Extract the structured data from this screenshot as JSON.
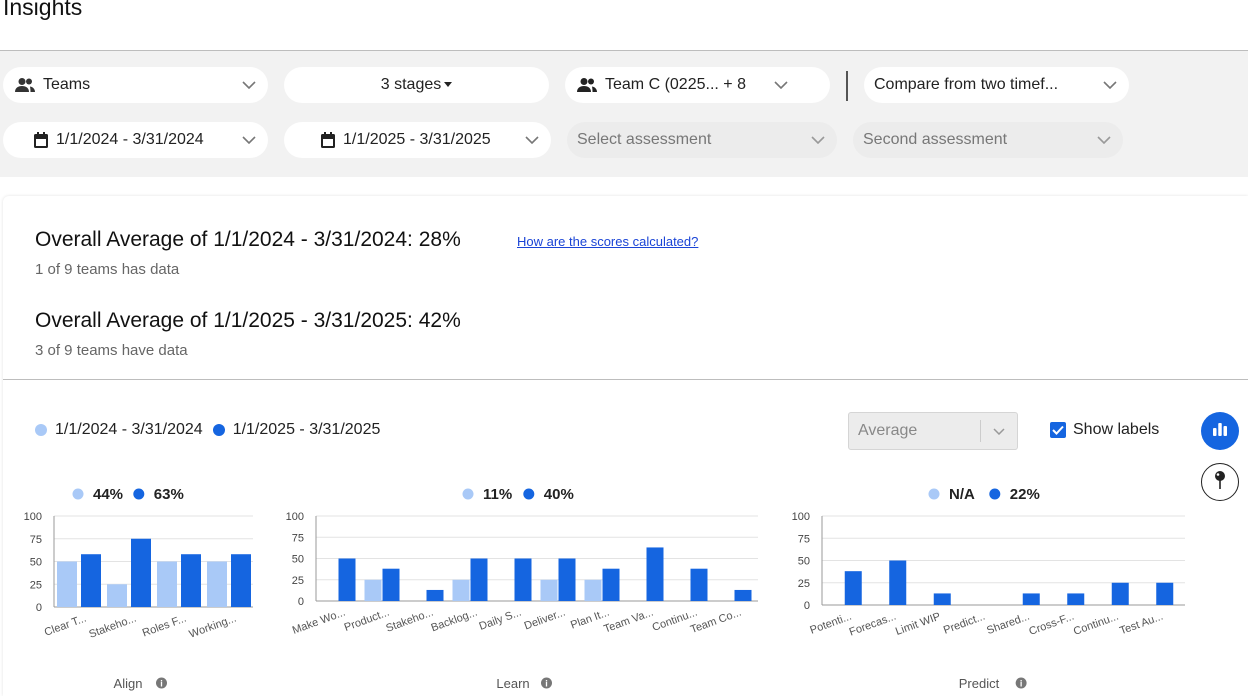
{
  "page_title": "Insights",
  "filters": {
    "group_by": "Teams",
    "stages": "3 stages",
    "teams": "Team C (0225... + 8",
    "compare_mode": "Compare from two timef...",
    "date_range_1": "1/1/2024 - 3/31/2024",
    "date_range_2": "1/1/2025 - 3/31/2025",
    "assessment_1_placeholder": "Select assessment",
    "assessment_2_placeholder": "Second assessment"
  },
  "summary": {
    "avg_1": "Overall Average of 1/1/2024 - 3/31/2024: 28%",
    "how_link": "How are the scores calculated?",
    "teams_1": "1 of 9 teams has data",
    "avg_2": "Overall Average of 1/1/2025 - 3/31/2025: 42%",
    "teams_2": "3 of 9 teams have data"
  },
  "legend": {
    "series_1": "1/1/2024 - 3/31/2024",
    "series_2": "1/1/2025 - 3/31/2025"
  },
  "controls": {
    "aggregation": "Average",
    "show_labels": "Show labels",
    "show_labels_checked": true
  },
  "colors": {
    "series_1": "#a9c9f7",
    "series_2": "#1565e0",
    "accent": "#1565e0"
  },
  "chart_data": [
    {
      "type": "bar",
      "group": "Align",
      "summary_1": "44%",
      "summary_2": "63%",
      "categories": [
        "Clear T...",
        "Stakeho...",
        "Roles F...",
        "Working..."
      ],
      "series": [
        {
          "name": "1/1/2024 - 3/31/2024",
          "values": [
            50,
            25,
            50,
            50
          ]
        },
        {
          "name": "1/1/2025 - 3/31/2025",
          "values": [
            58,
            75,
            58,
            58
          ]
        }
      ],
      "ylim": [
        0,
        100
      ],
      "yticks": [
        0,
        25,
        50,
        75,
        100
      ],
      "grid": true
    },
    {
      "type": "bar",
      "group": "Learn",
      "summary_1": "11%",
      "summary_2": "40%",
      "categories": [
        "Make Wo...",
        "Product...",
        "Stakeho...",
        "Backlog...",
        "Daily S...",
        "Deliver...",
        "Plan It...",
        "Team Va...",
        "Continu...",
        "Team Co..."
      ],
      "series": [
        {
          "name": "1/1/2024 - 3/31/2024",
          "values": [
            0,
            25,
            0,
            25,
            0,
            25,
            25,
            0,
            0,
            0
          ]
        },
        {
          "name": "1/1/2025 - 3/31/2025",
          "values": [
            50,
            38,
            13,
            50,
            50,
            50,
            38,
            63,
            38,
            13
          ]
        }
      ],
      "ylim": [
        0,
        100
      ],
      "yticks": [
        0,
        25,
        50,
        75,
        100
      ],
      "grid": true
    },
    {
      "type": "bar",
      "group": "Predict",
      "summary_1": "N/A",
      "summary_2": "22%",
      "categories": [
        "Potenti...",
        "Forecas...",
        "Limit WIP",
        "Predict...",
        "Shared...",
        "Cross-F...",
        "Continu...",
        "Test Au..."
      ],
      "series": [
        {
          "name": "1/1/2024 - 3/31/2024",
          "values": [
            0,
            0,
            0,
            0,
            0,
            0,
            0,
            0
          ]
        },
        {
          "name": "1/1/2025 - 3/31/2025",
          "values": [
            38,
            50,
            13,
            0,
            13,
            13,
            25,
            25
          ]
        }
      ],
      "ylim": [
        0,
        100
      ],
      "yticks": [
        0,
        25,
        50,
        75,
        100
      ],
      "grid": true
    }
  ]
}
